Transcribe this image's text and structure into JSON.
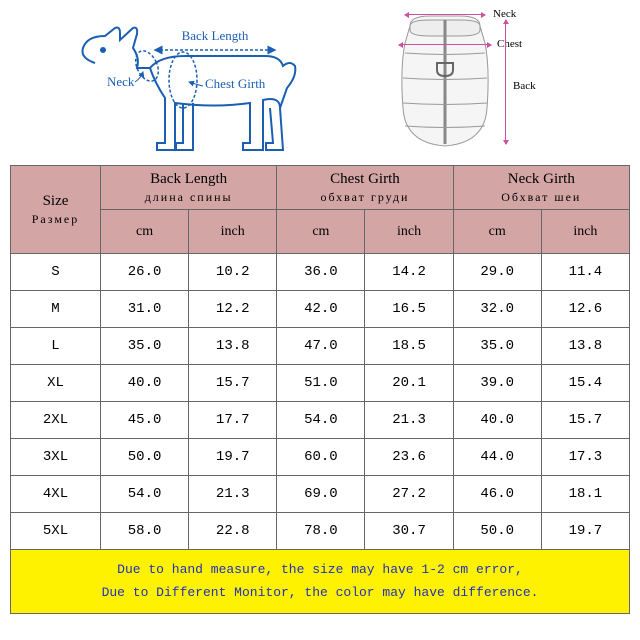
{
  "diagram": {
    "dog_labels": {
      "back": "Back Length",
      "neck": "Neck",
      "chest": "Chest Girth"
    },
    "jacket_labels": {
      "neck": "Neck",
      "chest": "Chest",
      "back": "Back"
    },
    "label_color": "#1a5fb4",
    "arrow_color": "#d050a0"
  },
  "table": {
    "header_bg": "#d4a5a5",
    "border_color": "#666666",
    "columns": {
      "size": {
        "en": "Size",
        "ru": "Размер"
      },
      "back": {
        "en": "Back Length",
        "ru": "длина спины"
      },
      "chest": {
        "en": "Chest Girth",
        "ru": "обхват груди"
      },
      "neck": {
        "en": "Neck Girth",
        "ru": "Обхват шеи"
      }
    },
    "units": {
      "cm": "cm",
      "inch": "inch"
    },
    "rows": [
      {
        "size": "S",
        "back_cm": "26.0",
        "back_in": "10.2",
        "chest_cm": "36.0",
        "chest_in": "14.2",
        "neck_cm": "29.0",
        "neck_in": "11.4"
      },
      {
        "size": "M",
        "back_cm": "31.0",
        "back_in": "12.2",
        "chest_cm": "42.0",
        "chest_in": "16.5",
        "neck_cm": "32.0",
        "neck_in": "12.6"
      },
      {
        "size": "L",
        "back_cm": "35.0",
        "back_in": "13.8",
        "chest_cm": "47.0",
        "chest_in": "18.5",
        "neck_cm": "35.0",
        "neck_in": "13.8"
      },
      {
        "size": "XL",
        "back_cm": "40.0",
        "back_in": "15.7",
        "chest_cm": "51.0",
        "chest_in": "20.1",
        "neck_cm": "39.0",
        "neck_in": "15.4"
      },
      {
        "size": "2XL",
        "back_cm": "45.0",
        "back_in": "17.7",
        "chest_cm": "54.0",
        "chest_in": "21.3",
        "neck_cm": "40.0",
        "neck_in": "15.7"
      },
      {
        "size": "3XL",
        "back_cm": "50.0",
        "back_in": "19.7",
        "chest_cm": "60.0",
        "chest_in": "23.6",
        "neck_cm": "44.0",
        "neck_in": "17.3"
      },
      {
        "size": "4XL",
        "back_cm": "54.0",
        "back_in": "21.3",
        "chest_cm": "69.0",
        "chest_in": "27.2",
        "neck_cm": "46.0",
        "neck_in": "18.1"
      },
      {
        "size": "5XL",
        "back_cm": "58.0",
        "back_in": "22.8",
        "chest_cm": "78.0",
        "chest_in": "30.7",
        "neck_cm": "50.0",
        "neck_in": "19.7"
      }
    ]
  },
  "notes": {
    "bg": "#fff200",
    "text_color": "#2030c0",
    "line1": "Due to hand measure, the size may have 1-2 cm error,",
    "line2": "Due to Different Monitor, the color may have difference."
  }
}
